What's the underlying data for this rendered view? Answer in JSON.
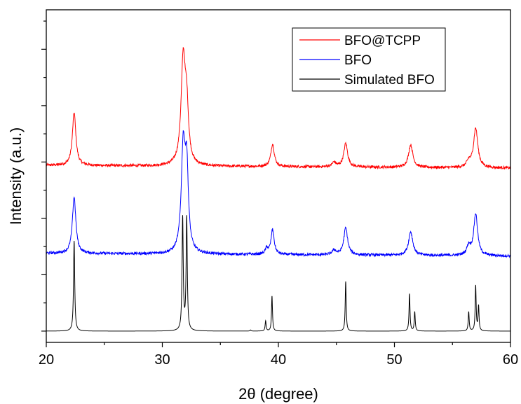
{
  "chart_data": {
    "type": "line",
    "xlabel": "2θ (degree)",
    "ylabel": "Intensity (a.u.)",
    "xlim": [
      20,
      60
    ],
    "ylim": [
      -0.1,
      2.85
    ],
    "xticks": [
      "20",
      "30",
      "40",
      "50",
      "60"
    ],
    "y_tick_labels_shown": false,
    "grid": false,
    "legend_position": "top-right",
    "series": [
      {
        "name": "BFO@TCPP",
        "color": "#ff0000",
        "baseline": 1.47,
        "noise": 0.012,
        "peaks": [
          {
            "x": 22.4,
            "h": 0.47,
            "w": 0.18
          },
          {
            "x": 31.8,
            "h": 0.93,
            "w": 0.22
          },
          {
            "x": 32.1,
            "h": 0.45,
            "w": 0.18
          },
          {
            "x": 39.5,
            "h": 0.2,
            "w": 0.18
          },
          {
            "x": 44.8,
            "h": 0.04,
            "w": 0.2
          },
          {
            "x": 45.8,
            "h": 0.21,
            "w": 0.2
          },
          {
            "x": 51.4,
            "h": 0.2,
            "w": 0.22
          },
          {
            "x": 56.4,
            "h": 0.05,
            "w": 0.2
          },
          {
            "x": 57.0,
            "h": 0.35,
            "w": 0.22
          }
        ]
      },
      {
        "name": "BFO",
        "color": "#0000ff",
        "baseline": 0.69,
        "noise": 0.012,
        "peaks": [
          {
            "x": 22.4,
            "h": 0.5,
            "w": 0.18
          },
          {
            "x": 31.8,
            "h": 0.92,
            "w": 0.2
          },
          {
            "x": 32.1,
            "h": 0.7,
            "w": 0.17
          },
          {
            "x": 39.0,
            "h": 0.05,
            "w": 0.15
          },
          {
            "x": 39.5,
            "h": 0.22,
            "w": 0.16
          },
          {
            "x": 44.8,
            "h": 0.04,
            "w": 0.2
          },
          {
            "x": 45.8,
            "h": 0.24,
            "w": 0.2
          },
          {
            "x": 51.4,
            "h": 0.21,
            "w": 0.22
          },
          {
            "x": 56.4,
            "h": 0.08,
            "w": 0.2
          },
          {
            "x": 57.0,
            "h": 0.37,
            "w": 0.2
          }
        ]
      },
      {
        "name": "Simulated BFO",
        "color": "#000000",
        "baseline": 0.0,
        "noise": 0.0,
        "peaks": [
          {
            "x": 22.4,
            "h": 0.8,
            "w": 0.06
          },
          {
            "x": 31.75,
            "h": 1.0,
            "w": 0.06
          },
          {
            "x": 32.1,
            "h": 1.0,
            "w": 0.06
          },
          {
            "x": 37.6,
            "h": 0.01,
            "w": 0.05
          },
          {
            "x": 38.9,
            "h": 0.09,
            "w": 0.05
          },
          {
            "x": 39.45,
            "h": 0.31,
            "w": 0.05
          },
          {
            "x": 45.8,
            "h": 0.44,
            "w": 0.05
          },
          {
            "x": 51.3,
            "h": 0.33,
            "w": 0.05
          },
          {
            "x": 51.75,
            "h": 0.17,
            "w": 0.05
          },
          {
            "x": 56.4,
            "h": 0.17,
            "w": 0.05
          },
          {
            "x": 57.0,
            "h": 0.4,
            "w": 0.05
          },
          {
            "x": 57.25,
            "h": 0.22,
            "w": 0.05
          }
        ]
      }
    ]
  }
}
